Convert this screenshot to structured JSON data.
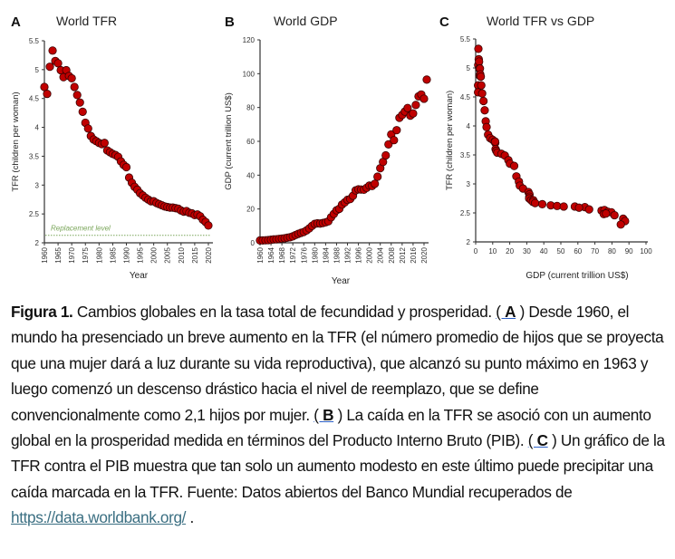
{
  "chart_data": [
    {
      "type": "scatter",
      "panel": "A",
      "title": "World TFR",
      "xlabel": "Year",
      "ylabel": "TFR (children per woman)",
      "xlim": [
        1960,
        2021
      ],
      "ylim": [
        2,
        5.5
      ],
      "xticks": [
        "1960",
        "1965",
        "1970",
        "1975",
        "1980",
        "1985",
        "1990",
        "1995",
        "2000",
        "2005",
        "2010",
        "2015",
        "2020"
      ],
      "yticks": [
        "2",
        "2.5",
        "3",
        "3.5",
        "4",
        "4.5",
        "5",
        "5.5"
      ],
      "grid": false,
      "annotation": {
        "text": "Replacement level",
        "y": 2.13,
        "color": "#7aa65a"
      },
      "x": [
        1960,
        1961,
        1962,
        1963,
        1964,
        1965,
        1966,
        1967,
        1968,
        1969,
        1970,
        1971,
        1972,
        1973,
        1974,
        1975,
        1976,
        1977,
        1978,
        1979,
        1980,
        1981,
        1982,
        1983,
        1984,
        1985,
        1986,
        1987,
        1988,
        1989,
        1990,
        1991,
        1992,
        1993,
        1994,
        1995,
        1996,
        1997,
        1998,
        1999,
        2000,
        2001,
        2002,
        2003,
        2004,
        2005,
        2006,
        2007,
        2008,
        2009,
        2010,
        2011,
        2012,
        2013,
        2014,
        2015,
        2016,
        2017,
        2018,
        2019,
        2020
      ],
      "y": [
        4.7,
        4.58,
        5.05,
        5.33,
        5.15,
        5.11,
        4.99,
        4.87,
        4.99,
        4.89,
        4.85,
        4.7,
        4.56,
        4.43,
        4.27,
        4.08,
        3.98,
        3.85,
        3.79,
        3.76,
        3.73,
        3.71,
        3.73,
        3.6,
        3.57,
        3.54,
        3.52,
        3.49,
        3.41,
        3.35,
        3.31,
        3.13,
        3.04,
        2.97,
        2.92,
        2.86,
        2.82,
        2.78,
        2.75,
        2.72,
        2.72,
        2.69,
        2.67,
        2.65,
        2.63,
        2.62,
        2.61,
        2.61,
        2.6,
        2.59,
        2.56,
        2.54,
        2.55,
        2.52,
        2.51,
        2.48,
        2.49,
        2.46,
        2.4,
        2.36,
        2.3
      ]
    },
    {
      "type": "scatter",
      "panel": "B",
      "title": "World GDP",
      "xlabel": "Year",
      "ylabel": "GDP (current trillion US$)",
      "xlim": [
        1960,
        2021
      ],
      "ylim": [
        0,
        120
      ],
      "xticks": [
        "1960",
        "1964",
        "1968",
        "1972",
        "1976",
        "1980",
        "1984",
        "1988",
        "1992",
        "1996",
        "2000",
        "2004",
        "2008",
        "2012",
        "2016",
        "2020"
      ],
      "yticks": [
        "0",
        "20",
        "40",
        "60",
        "80",
        "100",
        "120"
      ],
      "grid": false,
      "x": [
        1960,
        1961,
        1962,
        1963,
        1964,
        1965,
        1966,
        1967,
        1968,
        1969,
        1970,
        1971,
        1972,
        1973,
        1974,
        1975,
        1976,
        1977,
        1978,
        1979,
        1980,
        1981,
        1982,
        1983,
        1984,
        1985,
        1986,
        1987,
        1988,
        1989,
        1990,
        1991,
        1992,
        1993,
        1994,
        1995,
        1996,
        1997,
        1998,
        1999,
        2000,
        2001,
        2002,
        2003,
        2004,
        2005,
        2006,
        2007,
        2008,
        2009,
        2010,
        2011,
        2012,
        2013,
        2014,
        2015,
        2016,
        2017,
        2018,
        2019,
        2020,
        2021
      ],
      "y": [
        1.4,
        1.4,
        1.5,
        1.6,
        1.8,
        2.0,
        2.1,
        2.3,
        2.5,
        2.7,
        3.0,
        3.3,
        3.8,
        4.6,
        5.3,
        5.9,
        6.4,
        7.3,
        8.5,
        10.0,
        11.2,
        11.5,
        11.4,
        11.7,
        12.1,
        12.7,
        15.1,
        17.1,
        19.2,
        20.1,
        22.6,
        23.9,
        25.4,
        25.9,
        27.8,
        31.0,
        31.6,
        31.5,
        31.4,
        32.5,
        33.8,
        33.6,
        34.9,
        39.1,
        44.1,
        47.8,
        51.7,
        58.2,
        64.1,
        60.7,
        66.6,
        73.9,
        75.6,
        77.6,
        79.7,
        75.2,
        76.5,
        81.5,
        86.6,
        87.7,
        85.2,
        96.5
      ]
    },
    {
      "type": "scatter",
      "panel": "C",
      "title": "World TFR vs GDP",
      "xlabel": "GDP (current trillion US$)",
      "ylabel": "TFR (children per woman)",
      "xlim": [
        0,
        100
      ],
      "ylim": [
        2,
        5.5
      ],
      "xticks": [
        "0",
        "10",
        "20",
        "30",
        "40",
        "50",
        "60",
        "70",
        "80",
        "90",
        "100"
      ],
      "yticks": [
        "2",
        "2.5",
        "3",
        "3.5",
        "4",
        "4.5",
        "5",
        "5.5"
      ],
      "grid": false,
      "x": [
        1.4,
        1.4,
        1.5,
        1.6,
        1.8,
        2.0,
        2.1,
        2.3,
        2.5,
        2.7,
        3.0,
        3.3,
        3.8,
        4.6,
        5.3,
        5.9,
        6.4,
        7.3,
        8.5,
        10.0,
        11.2,
        11.5,
        11.4,
        11.7,
        12.1,
        12.7,
        15.1,
        17.1,
        19.2,
        20.1,
        22.6,
        23.9,
        25.4,
        25.9,
        27.8,
        31.0,
        31.6,
        31.5,
        31.4,
        32.5,
        33.8,
        33.6,
        34.9,
        39.1,
        44.1,
        47.8,
        51.7,
        58.2,
        64.1,
        60.7,
        66.6,
        73.9,
        75.6,
        77.6,
        79.7,
        75.2,
        76.5,
        81.5,
        86.6,
        87.7,
        85.2
      ],
      "y": [
        4.7,
        4.58,
        5.05,
        5.33,
        5.15,
        5.11,
        4.99,
        4.87,
        4.99,
        4.89,
        4.85,
        4.7,
        4.56,
        4.43,
        4.27,
        4.08,
        3.98,
        3.85,
        3.79,
        3.76,
        3.73,
        3.71,
        3.73,
        3.6,
        3.57,
        3.54,
        3.52,
        3.49,
        3.41,
        3.35,
        3.31,
        3.13,
        3.04,
        2.97,
        2.92,
        2.86,
        2.82,
        2.78,
        2.75,
        2.72,
        2.72,
        2.69,
        2.67,
        2.65,
        2.63,
        2.62,
        2.61,
        2.61,
        2.6,
        2.59,
        2.56,
        2.54,
        2.55,
        2.52,
        2.51,
        2.48,
        2.49,
        2.46,
        2.4,
        2.36,
        2.3
      ]
    }
  ],
  "colors": {
    "marker_fill": "#c00000",
    "marker_stroke": "#3a0000",
    "axis": "#333333",
    "replacement_line": "#7aa65a",
    "link": "#3b6f82",
    "ref_underline": "#2b5fc7"
  },
  "caption": {
    "label": "Figura 1.",
    "part1": " Cambios globales en la tasa total de fecundidad y prosperidad. ",
    "ref_a_open": "( ",
    "ref_a": "A",
    "ref_a_close": " )",
    "part2": " Desde 1960, el mundo ha presenciado un breve aumento en la TFR (el número promedio de hijos que se proyecta que una mujer dará a luz durante su vida reproductiva), que alcanzó su punto máximo en 1963 y luego comenzó un descenso drástico hacia el nivel de reemplazo, que se define convencionalmente como 2,1 hijos por mujer. ",
    "ref_b_open": "( ",
    "ref_b": "B",
    "ref_b_close": " )",
    "part3": " La caída en la TFR se asoció con un aumento global en la prosperidad medida en términos del Producto Interno Bruto (PIB). ",
    "ref_c_open": "( ",
    "ref_c": "C",
    "ref_c_close": " )",
    "part4": " Un gráfico de la TFR contra el PIB muestra que tan solo un aumento modesto en este último puede precipitar una caída marcada en la TFR. Fuente: Datos abiertos del Banco Mundial recuperados de ",
    "link_text": "https://data.worldbank.org/",
    "end": " ."
  }
}
